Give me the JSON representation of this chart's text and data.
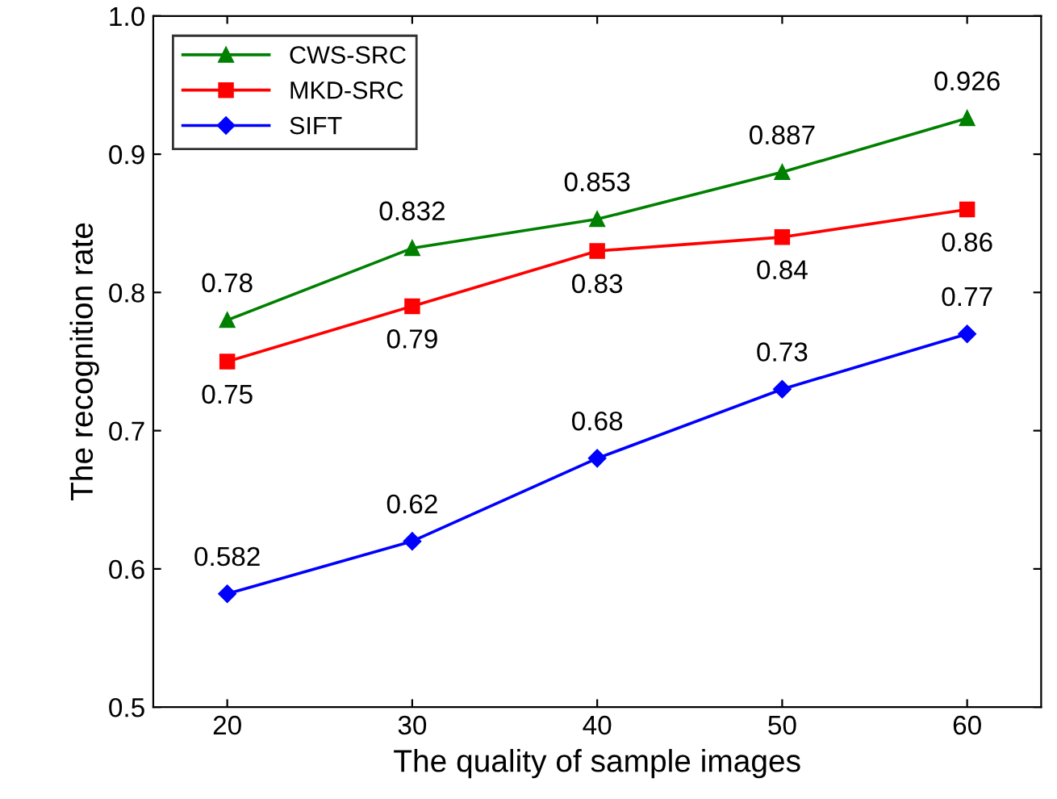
{
  "chart_data": {
    "type": "line",
    "xlabel": "The quality of sample images",
    "ylabel": "The recognition rate",
    "x": [
      20,
      30,
      40,
      50,
      60
    ],
    "series": [
      {
        "name": "CWS-SRC",
        "color": "#008000",
        "marker": "triangle",
        "values": [
          0.78,
          0.832,
          0.853,
          0.887,
          0.926
        ]
      },
      {
        "name": "MKD-SRC",
        "color": "#ff0000",
        "marker": "square",
        "values": [
          0.75,
          0.79,
          0.83,
          0.84,
          0.86
        ]
      },
      {
        "name": "SIFT",
        "color": "#0000ff",
        "marker": "diamond",
        "values": [
          0.582,
          0.62,
          0.68,
          0.73,
          0.77
        ]
      }
    ],
    "xlim": [
      16,
      64
    ],
    "xticks": [
      20,
      30,
      40,
      50,
      60
    ],
    "ylim": [
      0.5,
      1.0
    ],
    "yticks": [
      0.5,
      0.6,
      0.7,
      0.8,
      0.9,
      {
        "value": 1.0,
        "label": "1.0"
      }
    ],
    "data_labels": true,
    "legend": "top left",
    "grid": false,
    "line_style": "solid"
  }
}
